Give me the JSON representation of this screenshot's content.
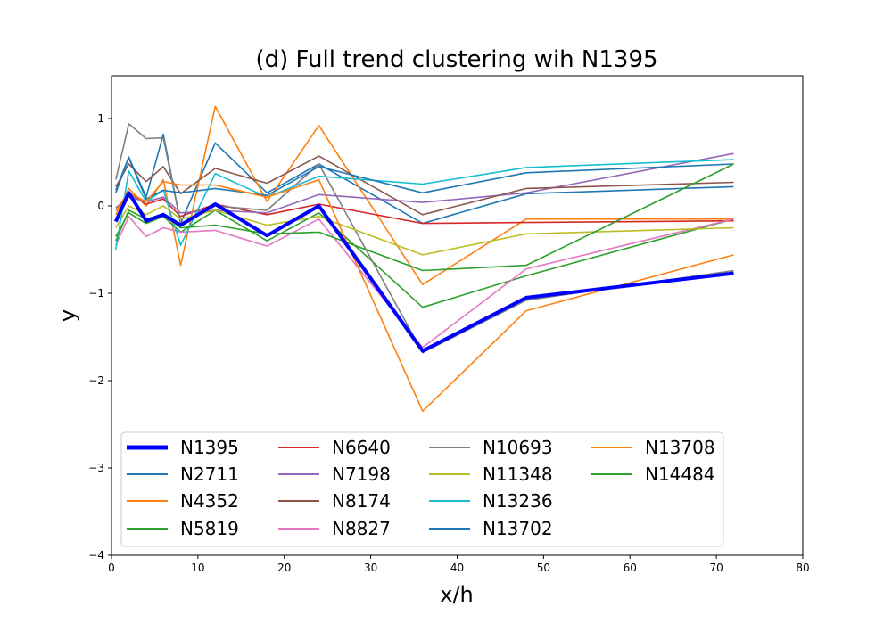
{
  "chart_data": {
    "type": "line",
    "title": "(d) Full trend clustering wih N1395",
    "xlabel": "x/h",
    "ylabel": "y",
    "xlim": [
      0,
      80
    ],
    "ylim": [
      -4,
      1.5
    ],
    "xticks": [
      0,
      10,
      20,
      30,
      40,
      50,
      60,
      70,
      80
    ],
    "yticks": [
      -4,
      -3,
      -2,
      -1,
      0,
      1
    ],
    "ytick_labels": [
      "−4",
      "−3",
      "−2",
      "−1",
      "0",
      "1"
    ],
    "grid": false,
    "legend_position": "lower-left",
    "legend_columns": 4,
    "series": [
      {
        "name": "N1395",
        "color": "#0000ff",
        "highlight": true,
        "x": [
          0.5,
          2,
          4,
          6,
          8,
          12,
          18,
          24,
          36,
          48,
          72
        ],
        "y": [
          -0.18,
          0.15,
          -0.17,
          -0.1,
          -0.22,
          0.02,
          -0.34,
          0.0,
          -1.66,
          -1.05,
          -0.77
        ]
      },
      {
        "name": "N2711",
        "color": "#1f77b4",
        "x": [
          0.5,
          2,
          4,
          6,
          8,
          12,
          18,
          24,
          36,
          48,
          72
        ],
        "y": [
          0.18,
          0.56,
          0.1,
          0.82,
          -0.2,
          0.72,
          0.15,
          0.48,
          -0.2,
          0.14,
          0.22
        ]
      },
      {
        "name": "N4352",
        "color": "#ff7f0e",
        "x": [
          0.5,
          2,
          4,
          6,
          8,
          12,
          18,
          24,
          36,
          48,
          72
        ],
        "y": [
          -0.1,
          0.2,
          0.0,
          0.3,
          -0.68,
          1.14,
          0.05,
          0.92,
          -0.9,
          -0.15,
          -0.15
        ]
      },
      {
        "name": "N5819",
        "color": "#2ca02c",
        "x": [
          0.5,
          2,
          4,
          6,
          8,
          12,
          18,
          24,
          36,
          48,
          72
        ],
        "y": [
          -0.35,
          -0.08,
          -0.2,
          -0.12,
          -0.3,
          -0.05,
          -0.4,
          -0.08,
          -1.16,
          -0.8,
          -0.15
        ]
      },
      {
        "name": "N6640",
        "color": "#d62728",
        "x": [
          0.5,
          2,
          4,
          6,
          8,
          12,
          18,
          24,
          36,
          48,
          72
        ],
        "y": [
          -0.05,
          0.15,
          0.02,
          0.08,
          -0.12,
          0.02,
          -0.1,
          0.02,
          -0.2,
          -0.19,
          -0.17
        ]
      },
      {
        "name": "N7198",
        "color": "#9467bd",
        "x": [
          0.5,
          2,
          4,
          6,
          8,
          12,
          18,
          24,
          36,
          48,
          72
        ],
        "y": [
          -0.02,
          0.1,
          0.05,
          0.1,
          -0.08,
          -0.05,
          -0.08,
          0.13,
          0.04,
          0.15,
          0.6
        ]
      },
      {
        "name": "N8174",
        "color": "#8c564b",
        "x": [
          0.5,
          2,
          4,
          6,
          8,
          12,
          18,
          24,
          36,
          48,
          72
        ],
        "y": [
          0.22,
          0.48,
          0.28,
          0.45,
          0.14,
          0.43,
          0.26,
          0.57,
          -0.1,
          0.2,
          0.27
        ]
      },
      {
        "name": "N8827",
        "color": "#e377c2",
        "x": [
          0.5,
          2,
          4,
          6,
          8,
          12,
          18,
          24,
          36,
          48,
          72
        ],
        "y": [
          -0.45,
          -0.12,
          -0.35,
          -0.25,
          -0.3,
          -0.28,
          -0.46,
          -0.15,
          -1.62,
          -0.72,
          -0.15
        ]
      },
      {
        "name": "N10693",
        "color": "#7f7f7f",
        "x": [
          0.5,
          2,
          4,
          6,
          8,
          12,
          18,
          24,
          36,
          48,
          72
        ],
        "y": [
          0.3,
          0.94,
          0.77,
          0.78,
          -0.2,
          0.0,
          -0.05,
          0.48,
          -1.68,
          -1.08,
          -0.74
        ]
      },
      {
        "name": "N11348",
        "color": "#bcbd22",
        "x": [
          0.5,
          2,
          4,
          6,
          8,
          12,
          18,
          24,
          36,
          48,
          72
        ],
        "y": [
          -0.25,
          0.0,
          -0.1,
          0.0,
          -0.15,
          -0.05,
          -0.22,
          -0.12,
          -0.56,
          -0.32,
          -0.25
        ]
      },
      {
        "name": "N13236",
        "color": "#17becf",
        "x": [
          0.5,
          2,
          4,
          6,
          8,
          12,
          18,
          24,
          36,
          48,
          72
        ],
        "y": [
          -0.5,
          0.4,
          0.05,
          0.18,
          -0.45,
          0.37,
          0.1,
          0.34,
          0.25,
          0.44,
          0.53
        ]
      },
      {
        "name": "N13702",
        "color": "#1f77b4",
        "x": [
          0.5,
          2,
          4,
          6,
          8,
          12,
          18,
          24,
          36,
          48,
          72
        ],
        "y": [
          0.15,
          0.55,
          0.08,
          0.18,
          0.15,
          0.2,
          0.12,
          0.45,
          0.15,
          0.38,
          0.48
        ]
      },
      {
        "name": "N13708",
        "color": "#ff7f0e",
        "x": [
          0.5,
          2,
          4,
          6,
          8,
          12,
          18,
          24,
          36,
          48,
          72
        ],
        "y": [
          -0.05,
          0.15,
          0.05,
          0.28,
          0.24,
          0.24,
          0.1,
          0.3,
          -2.35,
          -1.2,
          -0.56
        ]
      },
      {
        "name": "N14484",
        "color": "#2ca02c",
        "x": [
          0.5,
          2,
          4,
          6,
          8,
          12,
          18,
          24,
          36,
          48,
          72
        ],
        "y": [
          -0.4,
          -0.05,
          -0.15,
          -0.1,
          -0.25,
          -0.22,
          -0.32,
          -0.3,
          -0.74,
          -0.68,
          0.48
        ]
      }
    ]
  }
}
